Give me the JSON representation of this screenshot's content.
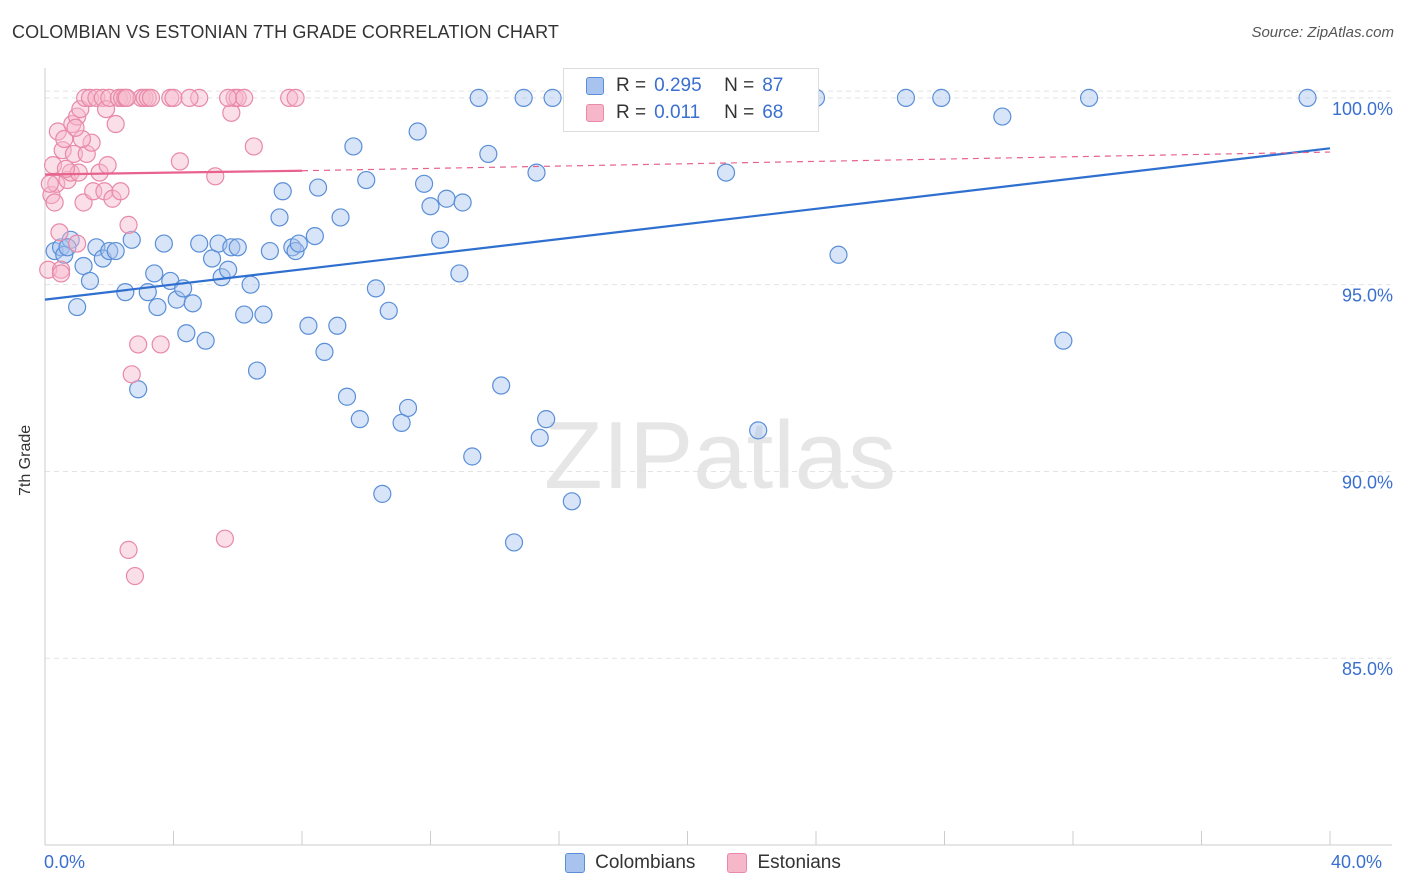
{
  "title": "COLOMBIAN VS ESTONIAN 7TH GRADE CORRELATION CHART",
  "source": "Source: ZipAtlas.com",
  "watermark": "ZIPatlas",
  "colors": {
    "blue_fill": "#a8c4ee",
    "blue_stroke": "#5a8fd8",
    "blue_line": "#2e6fcf",
    "pink_fill": "#f6b7cb",
    "pink_stroke": "#e889a8",
    "pink_line": "#e8628e",
    "grid": "#e3e3e3",
    "tick_label": "#3a6fd0"
  },
  "legend": {
    "rows": [
      {
        "r_label": "R =",
        "r_value": "0.295",
        "n_label": "N =",
        "n_value": "87"
      },
      {
        "r_label": "R =",
        "r_value": "0.011",
        "n_label": "N =",
        "n_value": "68"
      }
    ]
  },
  "bottom_legend": [
    "Colombians",
    "Estonians"
  ],
  "chart_data": {
    "type": "scatter",
    "title": "COLOMBIAN VS ESTONIAN 7TH GRADE CORRELATION CHART",
    "xlabel": "",
    "ylabel": "7th Grade",
    "xlim": [
      0,
      40
    ],
    "ylim": [
      80,
      100.8
    ],
    "x_tick_labels": [
      "0.0%",
      "40.0%"
    ],
    "y_ticks": [
      85,
      90,
      95,
      100
    ],
    "y_tick_labels": [
      "85.0%",
      "90.0%",
      "95.0%",
      "100.0%"
    ],
    "grid": true,
    "legend_position": "top-center",
    "series": [
      {
        "name": "Colombians",
        "R": 0.295,
        "N": 87,
        "trend": {
          "x": [
            0,
            40
          ],
          "y": [
            94.6,
            98.65
          ],
          "style": "solid"
        },
        "points": [
          [
            0.3,
            95.9
          ],
          [
            0.5,
            96
          ],
          [
            0.6,
            95.8
          ],
          [
            0.8,
            96.2
          ],
          [
            1.0,
            94.4
          ],
          [
            1.2,
            95.5
          ],
          [
            1.4,
            95.1
          ],
          [
            1.6,
            96
          ],
          [
            1.8,
            95.7
          ],
          [
            2.0,
            95.9
          ],
          [
            2.5,
            94.8
          ],
          [
            2.7,
            96.2
          ],
          [
            2.9,
            92.2
          ],
          [
            3.2,
            94.8
          ],
          [
            3.4,
            95.3
          ],
          [
            3.5,
            94.4
          ],
          [
            3.7,
            96.1
          ],
          [
            3.9,
            95.1
          ],
          [
            4.1,
            94.6
          ],
          [
            4.3,
            94.9
          ],
          [
            4.4,
            93.7
          ],
          [
            4.6,
            94.5
          ],
          [
            4.8,
            96.1
          ],
          [
            5.0,
            93.5
          ],
          [
            5.2,
            95.7
          ],
          [
            5.4,
            96.1
          ],
          [
            5.5,
            95.2
          ],
          [
            5.8,
            96
          ],
          [
            5.7,
            95.4
          ],
          [
            6.2,
            94.2
          ],
          [
            6.4,
            95
          ],
          [
            6.6,
            92.7
          ],
          [
            6.8,
            94.2
          ],
          [
            7.0,
            95.9
          ],
          [
            7.3,
            96.8
          ],
          [
            7.4,
            97.5
          ],
          [
            7.7,
            96
          ],
          [
            7.8,
            95.9
          ],
          [
            8.2,
            93.9
          ],
          [
            8.4,
            96.3
          ],
          [
            8.5,
            97.6
          ],
          [
            8.7,
            93.2
          ],
          [
            9.1,
            93.9
          ],
          [
            9.2,
            96.8
          ],
          [
            9.4,
            92
          ],
          [
            9.6,
            98.7
          ],
          [
            9.8,
            91.4
          ],
          [
            10.0,
            97.8
          ],
          [
            10.3,
            94.9
          ],
          [
            10.5,
            89.4
          ],
          [
            10.7,
            94.3
          ],
          [
            11.1,
            91.3
          ],
          [
            11.3,
            91.7
          ],
          [
            11.6,
            99.1
          ],
          [
            11.8,
            97.7
          ],
          [
            12.0,
            97.1
          ],
          [
            12.3,
            96.2
          ],
          [
            12.5,
            97.3
          ],
          [
            12.9,
            95.3
          ],
          [
            13.0,
            97.2
          ],
          [
            13.3,
            90.4
          ],
          [
            13.5,
            100
          ],
          [
            13.8,
            98.5
          ],
          [
            14.2,
            92.3
          ],
          [
            14.6,
            88.1
          ],
          [
            14.9,
            100
          ],
          [
            15.3,
            98
          ],
          [
            15.4,
            90.9
          ],
          [
            15.6,
            91.4
          ],
          [
            15.8,
            100
          ],
          [
            16.4,
            89.2
          ],
          [
            17.6,
            100
          ],
          [
            20.5,
            100
          ],
          [
            21.2,
            98
          ],
          [
            22.2,
            91.1
          ],
          [
            24.0,
            100
          ],
          [
            24.7,
            95.8
          ],
          [
            26.8,
            100
          ],
          [
            27.9,
            100
          ],
          [
            29.8,
            99.5
          ],
          [
            31.7,
            93.5
          ],
          [
            32.5,
            100
          ],
          [
            39.3,
            100
          ],
          [
            2.2,
            95.9
          ],
          [
            6.0,
            96
          ],
          [
            7.9,
            96.1
          ],
          [
            0.7,
            96
          ]
        ]
      },
      {
        "name": "Estonians",
        "R": 0.011,
        "N": 68,
        "trend": {
          "x": [
            0,
            8
          ],
          "y": [
            97.95,
            98.05
          ],
          "style": "solid",
          "extended": {
            "x": [
              8,
              40
            ],
            "y": [
              98.05,
              98.55
            ],
            "style": "dashed"
          }
        },
        "points": [
          [
            0.1,
            95.4
          ],
          [
            0.2,
            97.4
          ],
          [
            0.25,
            98.2
          ],
          [
            0.35,
            97.7
          ],
          [
            0.4,
            99.1
          ],
          [
            0.45,
            96.4
          ],
          [
            0.5,
            95.4
          ],
          [
            0.55,
            98.6
          ],
          [
            0.6,
            98.9
          ],
          [
            0.7,
            97.8
          ],
          [
            0.8,
            98
          ],
          [
            0.85,
            99.3
          ],
          [
            0.9,
            98.5
          ],
          [
            1.0,
            99.5
          ],
          [
            1.0,
            96.1
          ],
          [
            1.05,
            98
          ],
          [
            1.1,
            99.7
          ],
          [
            1.2,
            97.2
          ],
          [
            1.25,
            100
          ],
          [
            1.3,
            98.5
          ],
          [
            1.4,
            100
          ],
          [
            1.45,
            98.8
          ],
          [
            1.5,
            97.5
          ],
          [
            1.6,
            100
          ],
          [
            1.7,
            98
          ],
          [
            1.8,
            100
          ],
          [
            1.85,
            97.5
          ],
          [
            1.9,
            99.7
          ],
          [
            2.0,
            100
          ],
          [
            2.1,
            97.3
          ],
          [
            2.2,
            99.3
          ],
          [
            2.3,
            100
          ],
          [
            2.35,
            97.5
          ],
          [
            2.4,
            100
          ],
          [
            2.5,
            100
          ],
          [
            2.6,
            96.6
          ],
          [
            2.7,
            92.6
          ],
          [
            2.9,
            93.4
          ],
          [
            3.0,
            100
          ],
          [
            3.1,
            100
          ],
          [
            3.2,
            100
          ],
          [
            3.3,
            100
          ],
          [
            3.6,
            93.4
          ],
          [
            3.9,
            100
          ],
          [
            4.0,
            100
          ],
          [
            4.2,
            98.3
          ],
          [
            4.8,
            100
          ],
          [
            5.3,
            97.9
          ],
          [
            5.8,
            99.6
          ],
          [
            5.9,
            100
          ],
          [
            6.0,
            100
          ],
          [
            6.5,
            98.7
          ],
          [
            7.6,
            100
          ],
          [
            7.8,
            100
          ],
          [
            2.6,
            87.9
          ],
          [
            2.8,
            87.2
          ],
          [
            5.6,
            88.2
          ],
          [
            0.15,
            97.7
          ],
          [
            0.65,
            98.1
          ],
          [
            1.15,
            98.9
          ],
          [
            1.95,
            98.2
          ],
          [
            0.3,
            97.2
          ],
          [
            0.95,
            99.2
          ],
          [
            2.55,
            100
          ],
          [
            5.7,
            100
          ],
          [
            4.5,
            100
          ],
          [
            6.2,
            100
          ],
          [
            0.5,
            95.3
          ]
        ]
      }
    ]
  }
}
